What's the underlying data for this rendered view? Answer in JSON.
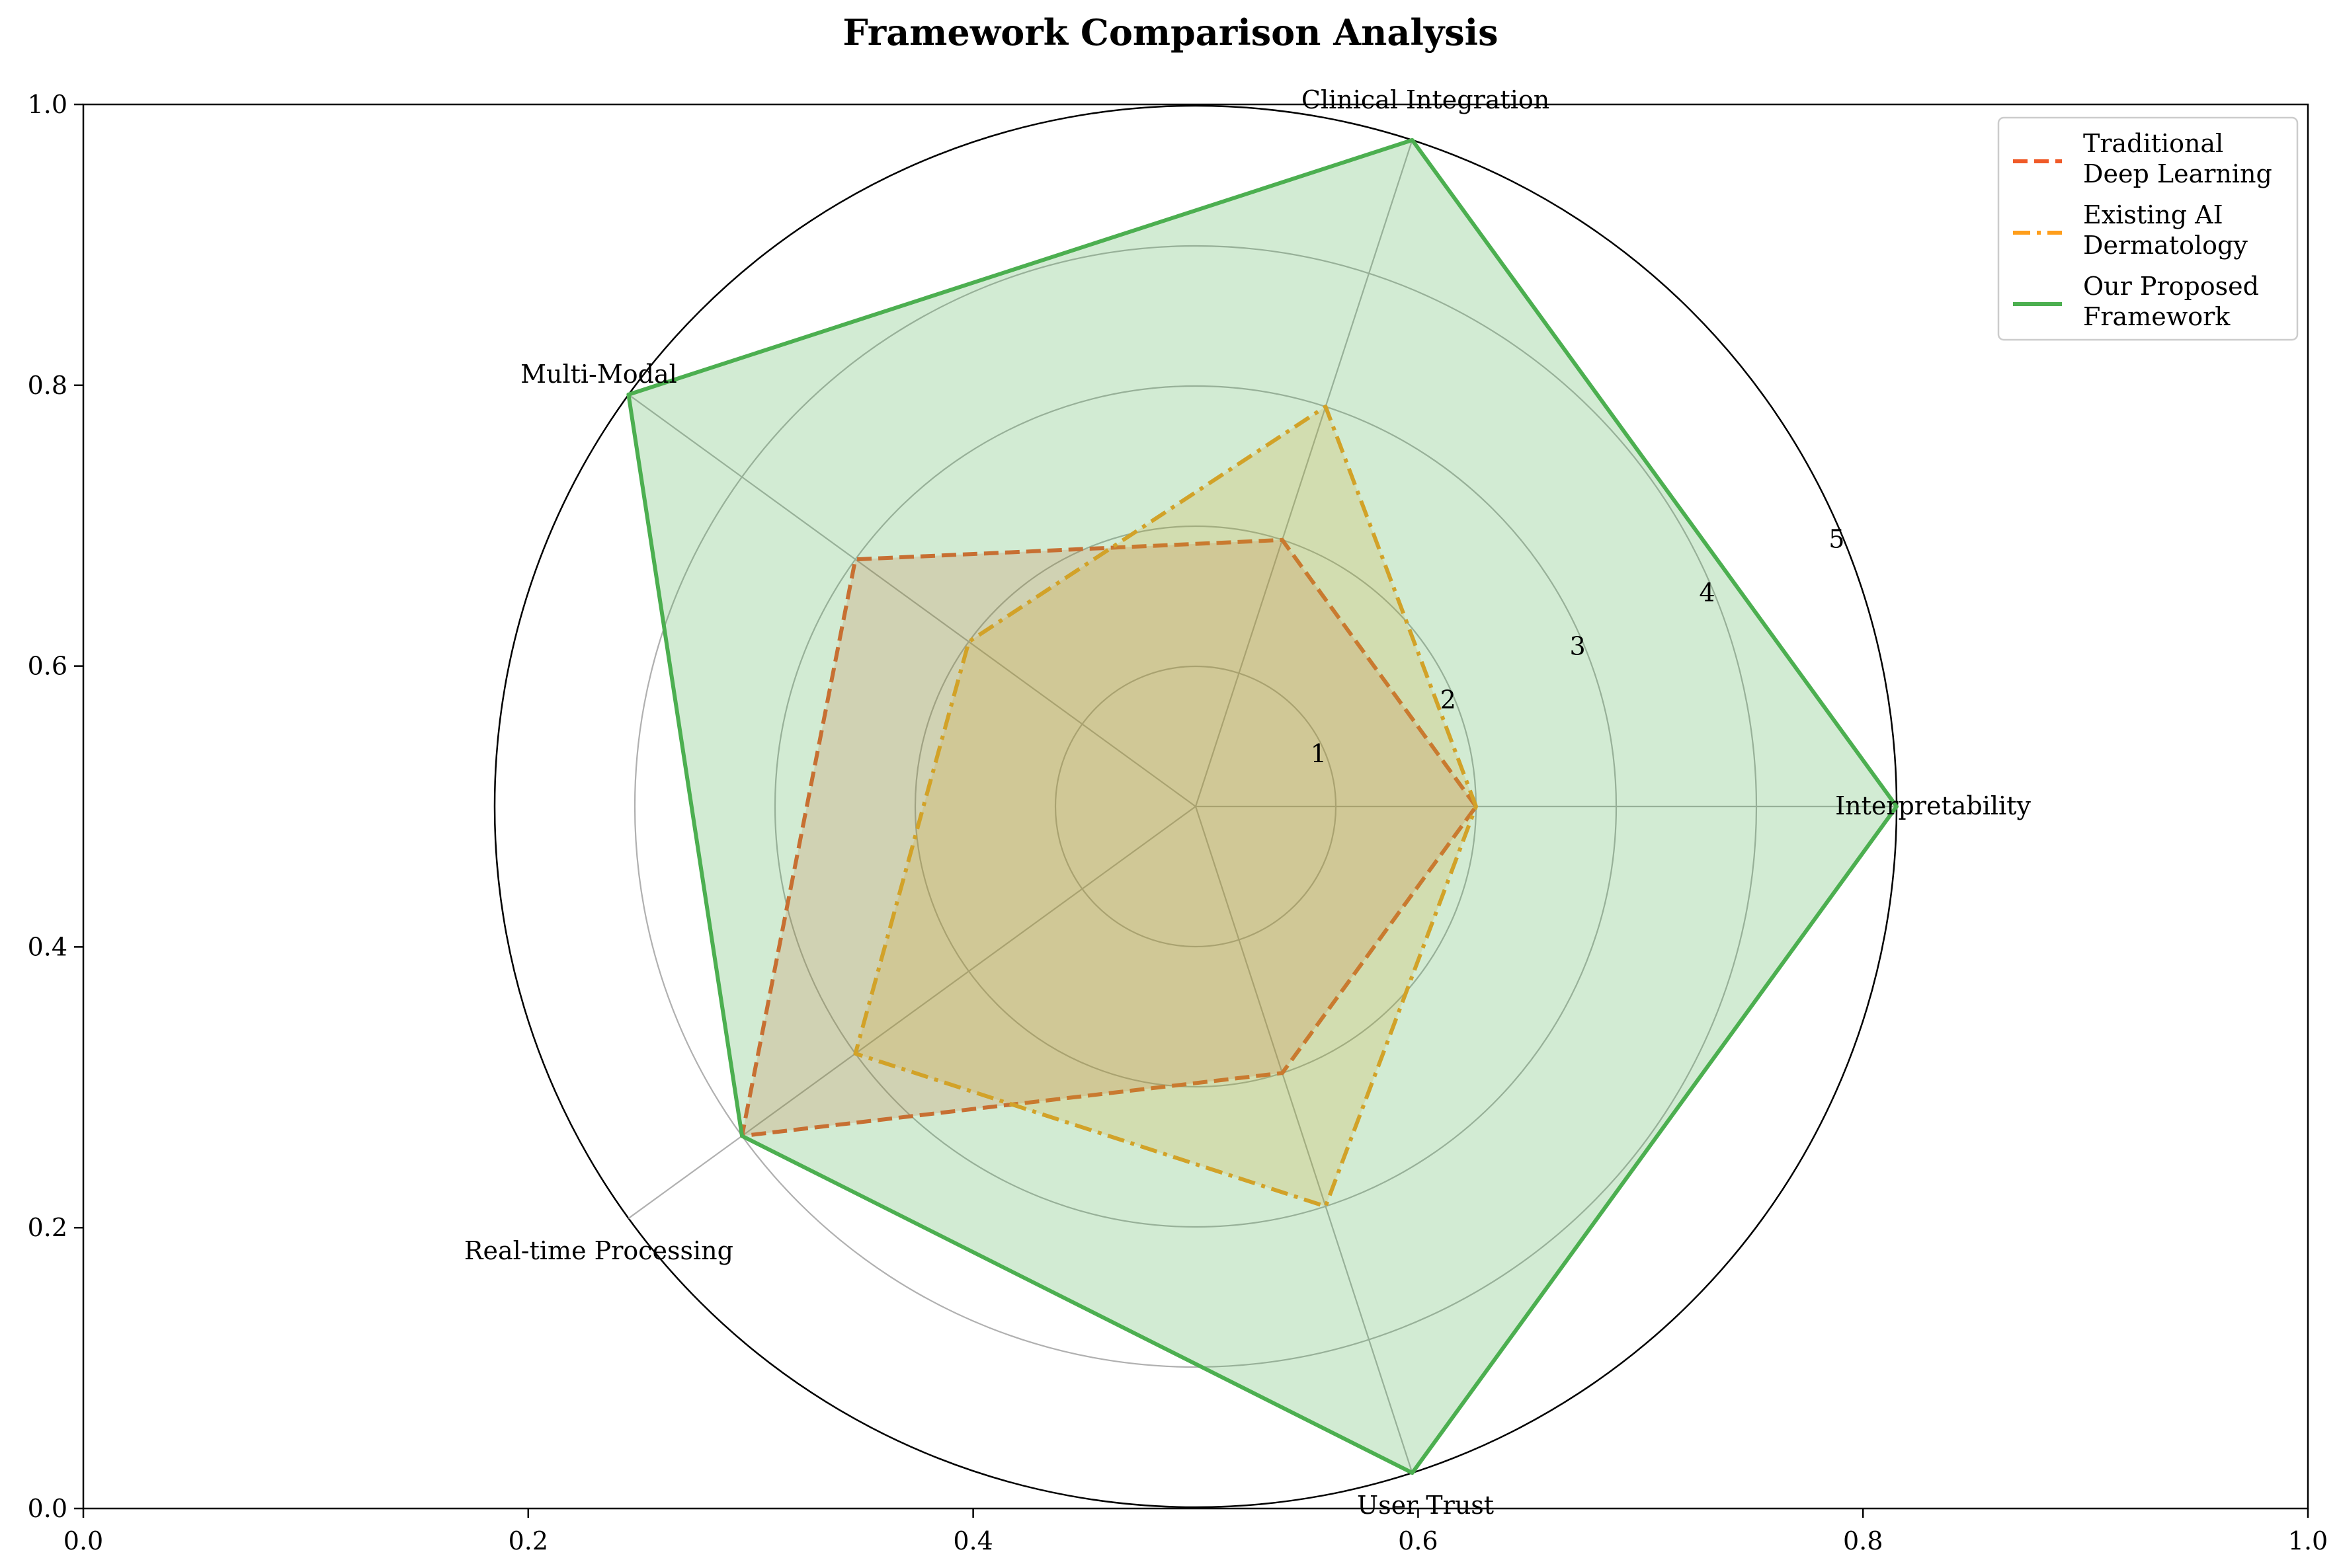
{
  "chart_data": {
    "type": "radar",
    "title": "Framework Comparison Analysis",
    "categories": [
      "Interpretability",
      "Clinical Integration",
      "Multi-Modal",
      "Real-time Processing",
      "User Trust"
    ],
    "radial_ticks": [
      "1",
      "2",
      "3",
      "4",
      "5"
    ],
    "radial_range": [
      0,
      5
    ],
    "series": [
      {
        "name": "Traditional\nDeep Learning",
        "values": [
          2,
          2,
          3,
          4,
          2
        ],
        "color": "#f05a28",
        "linestyle": "dashed",
        "fill_alpha": 0.2
      },
      {
        "name": "Existing AI\nDermatology",
        "values": [
          2,
          3,
          2,
          3,
          3
        ],
        "color": "#ff9e1b",
        "linestyle": "dashdot",
        "fill_alpha": 0.2
      },
      {
        "name": "Our Proposed\nFramework",
        "values": [
          5,
          5,
          5,
          4,
          5
        ],
        "color": "#4caf50",
        "linestyle": "solid",
        "fill_alpha": 0.25
      }
    ],
    "cartesian_axes": {
      "x_ticks": [
        "0.0",
        "0.2",
        "0.4",
        "0.6",
        "0.8",
        "1.0"
      ],
      "y_ticks": [
        "0.0",
        "0.2",
        "0.4",
        "0.6",
        "0.8",
        "1.0"
      ],
      "xlim": [
        0,
        1
      ],
      "ylim": [
        0,
        1
      ]
    },
    "legend_position": "top-right",
    "grid": true
  }
}
